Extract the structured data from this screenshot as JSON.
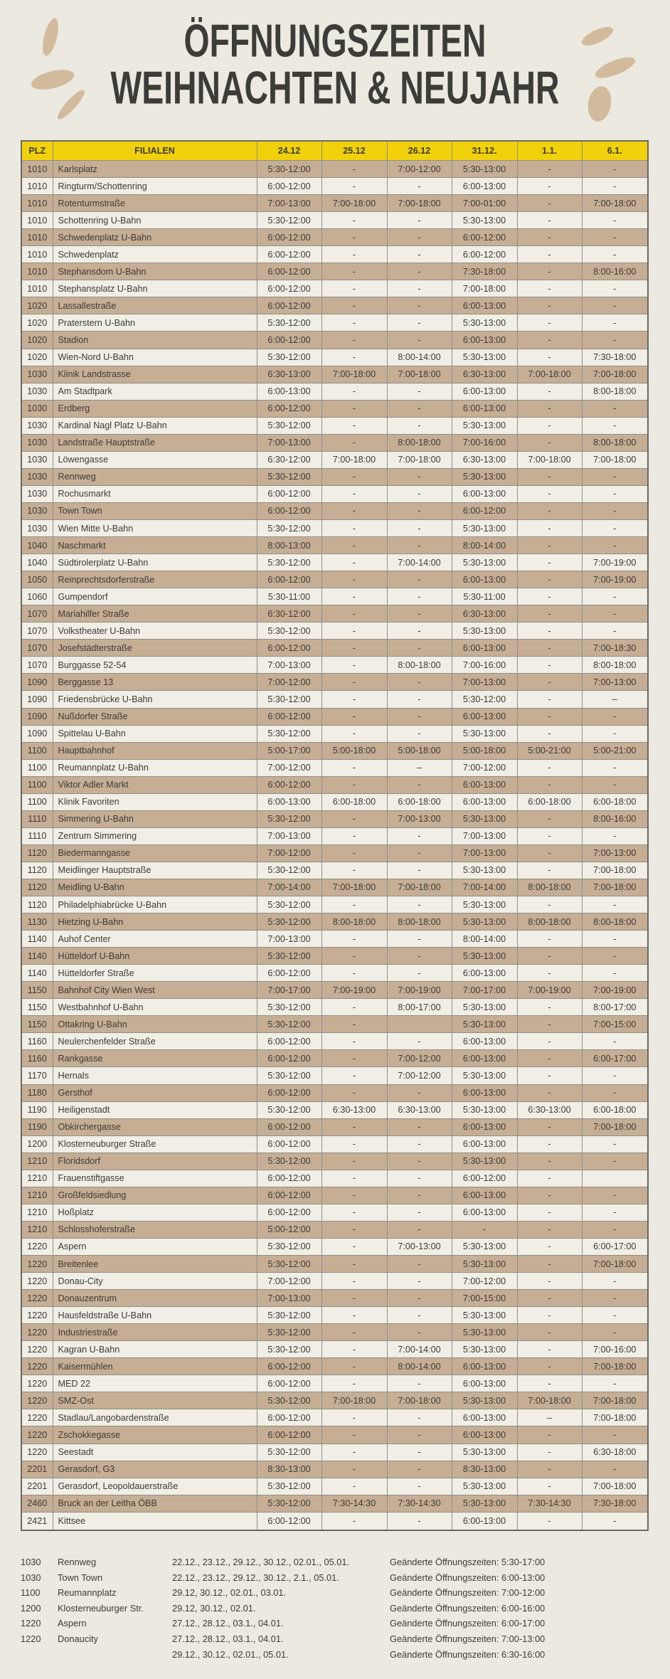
{
  "title": {
    "line1": "ÖFFNUNGSZEITEN",
    "line2": "WEIHNACHTEN & NEUJAHR"
  },
  "colors": {
    "background": "#ECE9E0",
    "header_yellow": "#F0D10B",
    "row_tan": "#C6AE95",
    "row_light": "#F0EEE5",
    "text": "#3B3A35",
    "decoration_beige": "#D2BB9D"
  },
  "table": {
    "columns": [
      "PLZ",
      "FILIALEN",
      "24.12",
      "25.12",
      "26.12",
      "31.12.",
      "1.1.",
      "6.1."
    ],
    "rows": [
      {
        "plz": "1010",
        "name": "Karlsplatz",
        "times": [
          "5:30-12:00",
          "-",
          "7:00-12:00",
          "5:30-13:00",
          "-",
          "-"
        ]
      },
      {
        "plz": "1010",
        "name": "Ringturm/Schottenring",
        "times": [
          "6:00-12:00",
          "-",
          "-",
          "6:00-13:00",
          "-",
          "-"
        ]
      },
      {
        "plz": "1010",
        "name": "Rotenturmstraße",
        "times": [
          "7:00-13:00",
          "7:00-18:00",
          "7:00-18:00",
          "7:00-01:00",
          "-",
          "7:00-18:00"
        ]
      },
      {
        "plz": "1010",
        "name": "Schottenring U-Bahn",
        "times": [
          "5:30-12:00",
          "-",
          "-",
          "5:30-13:00",
          "-",
          "-"
        ]
      },
      {
        "plz": "1010",
        "name": "Schwedenplatz U-Bahn",
        "times": [
          "6:00-12:00",
          "-",
          "-",
          "6:00-12:00",
          "-",
          "-"
        ]
      },
      {
        "plz": "1010",
        "name": "Schwedenplatz",
        "times": [
          "6:00-12:00",
          "-",
          "-",
          "6:00-12:00",
          "-",
          "-"
        ]
      },
      {
        "plz": "1010",
        "name": "Stephansdom U-Bahn",
        "times": [
          "6:00-12:00",
          "-",
          "-",
          "7:30-18:00",
          "-",
          "8:00-16:00"
        ]
      },
      {
        "plz": "1010",
        "name": "Stephansplatz U-Bahn",
        "times": [
          "6:00-12:00",
          "-",
          "-",
          "7:00-18:00",
          "-",
          "-"
        ]
      },
      {
        "plz": "1020",
        "name": "Lassallestraße",
        "times": [
          "6:00-12:00",
          "-",
          "-",
          "6:00-13:00",
          "-",
          "-"
        ]
      },
      {
        "plz": "1020",
        "name": "Praterstern U-Bahn",
        "times": [
          "5:30-12:00",
          "-",
          "-",
          "5:30-13:00",
          "-",
          "-"
        ]
      },
      {
        "plz": "1020",
        "name": "Stadion",
        "times": [
          "6:00-12:00",
          "-",
          "-",
          "6:00-13:00",
          "-",
          "-"
        ]
      },
      {
        "plz": "1020",
        "name": "Wien-Nord U-Bahn",
        "times": [
          "5:30-12:00",
          "-",
          "8:00-14:00",
          "5:30-13:00",
          "-",
          "7:30-18:00"
        ]
      },
      {
        "plz": "1030",
        "name": "Klinik Landstrasse",
        "times": [
          "6:30-13:00",
          "7:00-18:00",
          "7:00-18:00",
          "6:30-13:00",
          "7:00-18:00",
          "7:00-18:00"
        ]
      },
      {
        "plz": "1030",
        "name": "Am Stadtpark",
        "times": [
          "6:00-13:00",
          "-",
          "-",
          "6:00-13:00",
          "-",
          "8:00-18:00"
        ]
      },
      {
        "plz": "1030",
        "name": "Erdberg",
        "times": [
          "6:00-12:00",
          "-",
          "-",
          "6:00-13:00",
          "-",
          "-"
        ]
      },
      {
        "plz": "1030",
        "name": "Kardinal Nagl Platz U-Bahn",
        "times": [
          "5:30-12:00",
          "-",
          "-",
          "5:30-13:00",
          "-",
          "-"
        ]
      },
      {
        "plz": "1030",
        "name": "Landstraße Hauptstraße",
        "times": [
          "7:00-13:00",
          "-",
          "8:00-18:00",
          "7:00-16:00",
          "-",
          "8:00-18:00"
        ]
      },
      {
        "plz": "1030",
        "name": "Löwengasse",
        "times": [
          "6:30-12:00",
          "7:00-18:00",
          "7:00-18:00",
          "6:30-13:00",
          "7:00-18:00",
          "7:00-18:00"
        ]
      },
      {
        "plz": "1030",
        "name": "Rennweg",
        "times": [
          "5:30-12:00",
          "-",
          "-",
          "5:30-13:00",
          "-",
          "-"
        ]
      },
      {
        "plz": "1030",
        "name": "Rochusmarkt",
        "times": [
          "6:00-12:00",
          "-",
          "-",
          "6:00-13:00",
          "-",
          "-"
        ]
      },
      {
        "plz": "1030",
        "name": "Town Town",
        "times": [
          "6:00-12:00",
          "-",
          "-",
          "6:00-12:00",
          "-",
          "-"
        ]
      },
      {
        "plz": "1030",
        "name": "Wien Mitte U-Bahn",
        "times": [
          "5:30-12:00",
          "-",
          "-",
          "5:30-13:00",
          "-",
          "-"
        ]
      },
      {
        "plz": "1040",
        "name": "Naschmarkt",
        "times": [
          "8:00-13:00",
          "-",
          "-",
          "8:00-14:00",
          "-",
          "-"
        ]
      },
      {
        "plz": "1040",
        "name": "Südtirolerplatz U-Bahn",
        "times": [
          "5:30-12:00",
          "-",
          "7:00-14:00",
          "5:30-13:00",
          "-",
          "7:00-19:00"
        ]
      },
      {
        "plz": "1050",
        "name": "Reinprechtsdorferstraße",
        "times": [
          "6:00-12:00",
          "-",
          "-",
          "6:00-13:00",
          "-",
          "7:00-19:00"
        ]
      },
      {
        "plz": "1060",
        "name": "Gumpendorf",
        "times": [
          "5:30-11:00",
          "-",
          "-",
          "5:30-11:00",
          "-",
          "-"
        ]
      },
      {
        "plz": "1070",
        "name": "Mariahilfer Straße",
        "times": [
          "6:30-12:00",
          "-",
          "-",
          "6:30-13:00",
          "-",
          "-"
        ]
      },
      {
        "plz": "1070",
        "name": "Volkstheater U-Bahn",
        "times": [
          "5:30-12:00",
          "-",
          "-",
          "5:30-13:00",
          "-",
          "-"
        ]
      },
      {
        "plz": "1070",
        "name": "Josefstädterstraße",
        "times": [
          "6:00-12:00",
          "-",
          "-",
          "6:00-13:00",
          "-",
          "7:00-18:30"
        ]
      },
      {
        "plz": "1070",
        "name": "Burggasse 52-54",
        "times": [
          "7:00-13:00",
          "-",
          "8:00-18:00",
          "7:00-16:00",
          "-",
          "8:00-18:00"
        ]
      },
      {
        "plz": "1090",
        "name": "Berggasse 13",
        "times": [
          "7:00-12:00",
          "-",
          "-",
          "7:00-13:00",
          "-",
          "7:00-13:00"
        ]
      },
      {
        "plz": "1090",
        "name": "Friedensbrücke U-Bahn",
        "times": [
          "5:30-12:00",
          "-",
          "-",
          "5:30-12:00",
          "-",
          "–"
        ]
      },
      {
        "plz": "1090",
        "name": "Nußdorfer Straße",
        "times": [
          "6:00-12:00",
          "-",
          "-",
          "6:00-13:00",
          "-",
          "-"
        ]
      },
      {
        "plz": "1090",
        "name": "Spittelau U-Bahn",
        "times": [
          "5:30-12:00",
          "-",
          "-",
          "5:30-13:00",
          "-",
          "-"
        ]
      },
      {
        "plz": "1100",
        "name": "Hauptbahnhof",
        "times": [
          "5:00-17:00",
          "5:00-18:00",
          "5:00-18:00",
          "5:00-18:00",
          "5:00-21:00",
          "5:00-21:00"
        ]
      },
      {
        "plz": "1100",
        "name": "Reumannplatz U-Bahn",
        "times": [
          "7:00-12:00",
          "-",
          "–",
          "7:00-12:00",
          "-",
          "-"
        ]
      },
      {
        "plz": "1100",
        "name": "Viktor Adler Markt",
        "times": [
          "6:00-12:00",
          "-",
          "-",
          "6:00-13:00",
          "-",
          "-"
        ]
      },
      {
        "plz": "1100",
        "name": "Klinik Favoriten",
        "times": [
          "6:00-13:00",
          "6:00-18:00",
          "6:00-18:00",
          "6:00-13:00",
          "6:00-18:00",
          "6:00-18:00"
        ]
      },
      {
        "plz": "1110",
        "name": "Simmering U-Bahn",
        "times": [
          "5:30-12:00",
          "-",
          "7:00-13:00",
          "5:30-13:00",
          "-",
          "8:00-16:00"
        ]
      },
      {
        "plz": "1110",
        "name": "Zentrum Simmering",
        "times": [
          "7:00-13:00",
          "-",
          "-",
          "7:00-13:00",
          "-",
          "-"
        ]
      },
      {
        "plz": "1120",
        "name": "Biedermanngasse",
        "times": [
          "7:00-12:00",
          "-",
          "-",
          "7:00-13:00",
          "-",
          "7:00-13:00"
        ]
      },
      {
        "plz": "1120",
        "name": "Meidlinger Hauptstraße",
        "times": [
          "5:30-12:00",
          "-",
          "-",
          "5:30-13:00",
          "-",
          "7:00-18:00"
        ]
      },
      {
        "plz": "1120",
        "name": "Meidling U-Bahn",
        "times": [
          "7:00-14:00",
          "7:00-18:00",
          "7:00-18:00",
          "7:00-14:00",
          "8:00-18:00",
          "7:00-18:00"
        ]
      },
      {
        "plz": "1120",
        "name": "Philadelphiabrücke U-Bahn",
        "times": [
          "5:30-12:00",
          "-",
          "-",
          "5:30-13:00",
          "-",
          "-"
        ]
      },
      {
        "plz": "1130",
        "name": "Hietzing U-Bahn",
        "times": [
          "5:30-12:00",
          "8:00-18:00",
          "8:00-18:00",
          "5:30-13:00",
          "8:00-18:00",
          "8:00-18:00"
        ]
      },
      {
        "plz": "1140",
        "name": "Auhof Center",
        "times": [
          "7:00-13:00",
          "-",
          "-",
          "8:00-14:00",
          "-",
          "-"
        ]
      },
      {
        "plz": "1140",
        "name": "Hütteldorf U-Bahn",
        "times": [
          "5:30-12:00",
          "-",
          "-",
          "5:30-13:00",
          "-",
          "-"
        ]
      },
      {
        "plz": "1140",
        "name": "Hütteldorfer Straße",
        "times": [
          "6:00-12:00",
          "-",
          "-",
          "6:00-13:00",
          "-",
          "-"
        ]
      },
      {
        "plz": "1150",
        "name": "Bahnhof City Wien West",
        "times": [
          "7:00-17:00",
          "7:00-19:00",
          "7:00-19:00",
          "7:00-17:00",
          "7:00-19:00",
          "7:00-19:00"
        ]
      },
      {
        "plz": "1150",
        "name": "Westbahnhof U-Bahn",
        "times": [
          "5:30-12:00",
          "-",
          "8:00-17:00",
          "5:30-13:00",
          "-",
          "8:00-17:00"
        ]
      },
      {
        "plz": "1150",
        "name": "Ottakring U-Bahn",
        "times": [
          "5:30-12:00",
          "-",
          "",
          "5:30-13:00",
          "-",
          "7:00-15:00"
        ]
      },
      {
        "plz": "1160",
        "name": "Neulerchenfelder Straße",
        "times": [
          "6:00-12:00",
          "-",
          "-",
          "6:00-13:00",
          "-",
          "-"
        ]
      },
      {
        "plz": "1160",
        "name": "Rankgasse",
        "times": [
          "6:00-12:00",
          "-",
          "7:00-12:00",
          "6:00-13:00",
          "-",
          "6:00-17:00"
        ]
      },
      {
        "plz": "1170",
        "name": "Hernals",
        "times": [
          "5:30-12:00",
          "-",
          "7:00-12:00",
          "5:30-13:00",
          "-",
          "-"
        ]
      },
      {
        "plz": "1180",
        "name": "Gersthof",
        "times": [
          "6:00-12:00",
          "-",
          "-",
          "6:00-13:00",
          "-",
          "-"
        ]
      },
      {
        "plz": "1190",
        "name": "Heiligenstadt",
        "times": [
          "5:30-12:00",
          "6:30-13:00",
          "6:30-13:00",
          "5:30-13:00",
          "6:30-13:00",
          "6:00-18:00"
        ]
      },
      {
        "plz": "1190",
        "name": "Obkirchergasse",
        "times": [
          "6:00-12:00",
          "-",
          "-",
          "6:00-13:00",
          "-",
          "7:00-18:00"
        ]
      },
      {
        "plz": "1200",
        "name": "Klosterneuburger Straße",
        "times": [
          "6:00-12:00",
          "-",
          "-",
          "6:00-13:00",
          "-",
          "-"
        ]
      },
      {
        "plz": "1210",
        "name": "Floridsdorf",
        "times": [
          "5:30-12:00",
          "-",
          "-",
          "5:30-13:00",
          "-",
          "-"
        ]
      },
      {
        "plz": "1210",
        "name": "Frauenstiftgasse",
        "times": [
          "6:00-12:00",
          "-",
          "-",
          "6:00-12:00",
          "-",
          ""
        ]
      },
      {
        "plz": "1210",
        "name": "Großfeldsiedlung",
        "times": [
          "6:00-12:00",
          "-",
          "-",
          "6:00-13:00",
          "-",
          "-"
        ]
      },
      {
        "plz": "1210",
        "name": "Hoßplatz",
        "times": [
          "6:00-12:00",
          "-",
          "-",
          "6:00-13:00",
          "-",
          "-"
        ]
      },
      {
        "plz": "1210",
        "name": "Schlosshoferstraße",
        "times": [
          "5:00-12:00",
          "-",
          "-",
          "-",
          "-",
          "-"
        ]
      },
      {
        "plz": "1220",
        "name": "Aspern",
        "times": [
          "5:30-12:00",
          "-",
          "7:00-13:00",
          "5:30-13:00",
          "-",
          "6:00-17:00"
        ]
      },
      {
        "plz": "1220",
        "name": "Breitenlee",
        "times": [
          "5:30-12:00",
          "-",
          "-",
          "5:30-13:00",
          "-",
          "7:00-18:00"
        ]
      },
      {
        "plz": "1220",
        "name": "Donau-City",
        "times": [
          "7:00-12:00",
          "-",
          "-",
          "7:00-12:00",
          "-",
          "-"
        ]
      },
      {
        "plz": "1220",
        "name": "Donauzentrum",
        "times": [
          "7:00-13:00",
          "-",
          "-",
          "7:00-15:00",
          "-",
          "-"
        ]
      },
      {
        "plz": "1220",
        "name": "Hausfeldstraße U-Bahn",
        "times": [
          "5:30-12:00",
          "-",
          "-",
          "5:30-13:00",
          "-",
          "-"
        ]
      },
      {
        "plz": "1220",
        "name": "Industriestraße",
        "times": [
          "5:30-12:00",
          "-",
          "-",
          "5:30-13:00",
          "-",
          "-"
        ]
      },
      {
        "plz": "1220",
        "name": "Kagran U-Bahn",
        "times": [
          "5:30-12:00",
          "-",
          "7:00-14:00",
          "5:30-13:00",
          "-",
          "7:00-16:00"
        ]
      },
      {
        "plz": "1220",
        "name": "Kaisermühlen",
        "times": [
          "6:00-12:00",
          "-",
          "8:00-14:00",
          "6:00-13:00",
          "-",
          "7:00-18:00"
        ]
      },
      {
        "plz": "1220",
        "name": "MED 22",
        "times": [
          "6:00-12:00",
          "-",
          "-",
          "6:00-13:00",
          "-",
          "-"
        ]
      },
      {
        "plz": "1220",
        "name": "SMZ-Ost",
        "times": [
          "5:30-12:00",
          "7:00-18:00",
          "7:00-18:00",
          "5:30-13:00",
          "7:00-18:00",
          "7:00-18:00"
        ]
      },
      {
        "plz": "1220",
        "name": "Stadlau/Langobardenstraße",
        "times": [
          "6:00-12:00",
          "-",
          "-",
          "6:00-13:00",
          "–",
          "7:00-18:00"
        ]
      },
      {
        "plz": "1220",
        "name": "Zschokkegasse",
        "times": [
          "6:00-12:00",
          "-",
          "-",
          "6:00-13:00",
          "-",
          "-"
        ]
      },
      {
        "plz": "1220",
        "name": "Seestadt",
        "times": [
          "5:30-12:00",
          "-",
          "-",
          "5:30-13:00",
          "-",
          "6:30-18:00"
        ]
      },
      {
        "plz": "2201",
        "name": "Gerasdorf, G3",
        "times": [
          "8:30-13:00",
          "-",
          "-",
          "8:30-13:00",
          "-",
          "-"
        ]
      },
      {
        "plz": "2201",
        "name": "Gerasdorf, Leopoldauerstraße",
        "times": [
          "5:30-12:00",
          "-",
          "-",
          "5:30-13:00",
          "-",
          "7:00-18:00"
        ]
      },
      {
        "plz": "2460",
        "name": "Bruck an der Leitha ÖBB",
        "times": [
          "5:30-12:00",
          "7:30-14:30",
          "7:30-14:30",
          "5:30-13:00",
          "7:30-14:30",
          "7:30-18:00"
        ]
      },
      {
        "plz": "2421",
        "name": "Kittsee",
        "times": [
          "6:00-12:00",
          "-",
          "-",
          "6:00-13:00",
          "-",
          "-"
        ]
      }
    ]
  },
  "notes": [
    {
      "plz": "1030",
      "name": "Rennweg",
      "dates": "22.12., 23.12., 29.12., 30.12., 02.01., 05.01.",
      "change": "Geänderte Öffnungszeiten: 5:30-17:00"
    },
    {
      "plz": "1030",
      "name": "Town Town",
      "dates": "22.12., 23.12., 29.12., 30.12., 2.1., 05.01.",
      "change": "Geänderte Öffnungszeiten: 6:00-13:00"
    },
    {
      "plz": "1100",
      "name": "Reumannplatz",
      "dates": "29.12, 30.12., 02.01., 03.01.",
      "change": "Geänderte Öffnungszeiten: 7:00-12:00"
    },
    {
      "plz": "1200",
      "name": "Klosterneuburger Str.",
      "dates": "29.12, 30.12., 02.01.",
      "change": "Geänderte Öffnungszeiten: 6:00-16:00"
    },
    {
      "plz": "1220",
      "name": "Aspern",
      "dates": "27.12., 28.12., 03.1., 04.01.",
      "change": "Geänderte Öffnungszeiten: 6:00-17:00"
    },
    {
      "plz": "1220",
      "name": "Donaucity",
      "dates": "27.12., 28.12., 03.1., 04.01.",
      "change": "Geänderte Öffnungszeiten: 7:00-13:00"
    },
    {
      "plz": "",
      "name": "",
      "dates": "29.12., 30.12., 02.01., 05.01.",
      "change": "Geänderte Öffnungszeiten: 6:30-16:00"
    }
  ]
}
